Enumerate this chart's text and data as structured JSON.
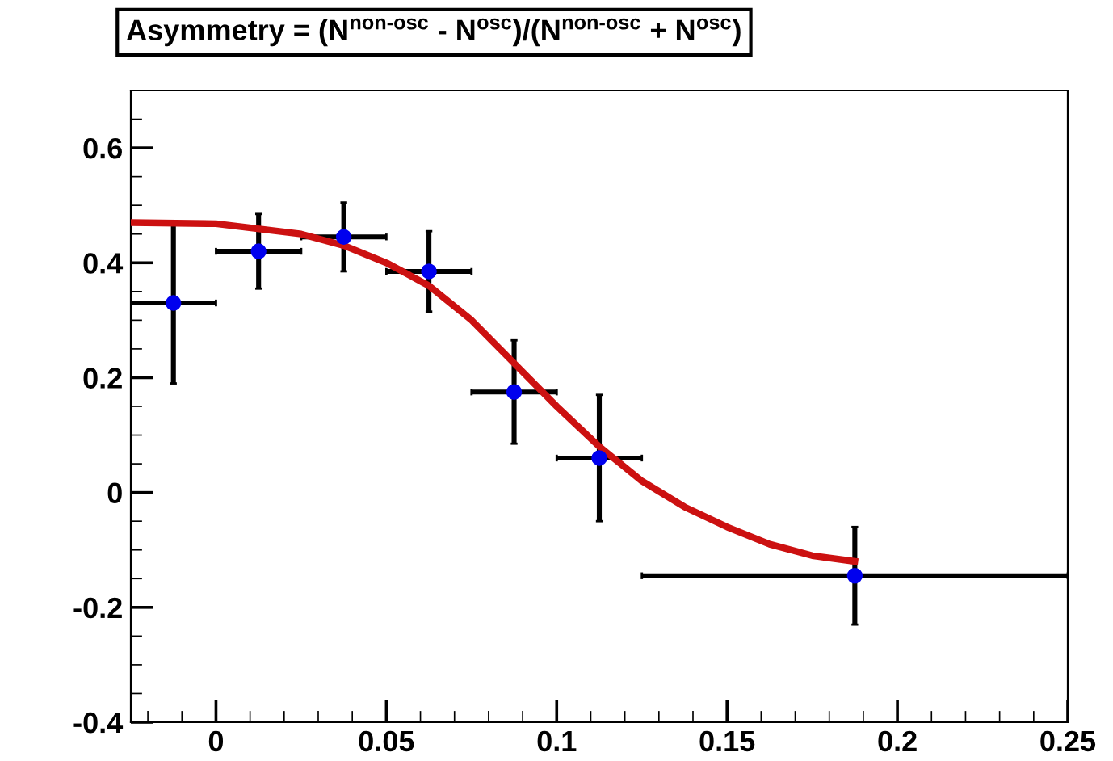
{
  "chart_data": {
    "type": "scatter",
    "title": "Asymmetry = (N$^{non-osc}$ - N$^{osc}$)/(N$^{non-osc}$ + N$^{osc}$)",
    "series": [
      {
        "color": "#0000ee",
        "marker": "circle",
        "x": [
          -0.0125,
          0.0125,
          0.0375,
          0.0625,
          0.0875,
          0.1125,
          0.1875
        ],
        "values": [
          0.33,
          0.42,
          0.445,
          0.385,
          0.175,
          0.06,
          -0.145
        ],
        "errors": [
          0.14,
          0.065,
          0.06,
          0.07,
          0.09,
          0.11,
          0.085
        ],
        "xerrors": [
          0.0125,
          0.0125,
          0.0125,
          0.0125,
          0.0125,
          0.0125,
          0.0625
        ]
      },
      {
        "type": "line",
        "color": "#cc1111",
        "x": [
          -0.025,
          0,
          0.025,
          0.0375,
          0.05,
          0.0625,
          0.075,
          0.0875,
          0.1,
          0.1125,
          0.125,
          0.1375,
          0.15,
          0.1625,
          0.175,
          0.1875
        ],
        "values": [
          0.47,
          0.468,
          0.45,
          0.43,
          0.4,
          0.36,
          0.3,
          0.225,
          0.15,
          0.08,
          0.02,
          -0.025,
          -0.06,
          -0.09,
          -0.11,
          -0.12
        ]
      }
    ],
    "xlim": [
      -0.025,
      0.25
    ],
    "xticks": [
      0,
      0.05,
      0.1,
      0.15,
      0.2,
      0.25
    ],
    "ylim": [
      -0.4,
      0.7
    ],
    "yticks": [
      -0.4,
      -0.2,
      0,
      0.2,
      0.4,
      0.6
    ],
    "grid": false
  }
}
